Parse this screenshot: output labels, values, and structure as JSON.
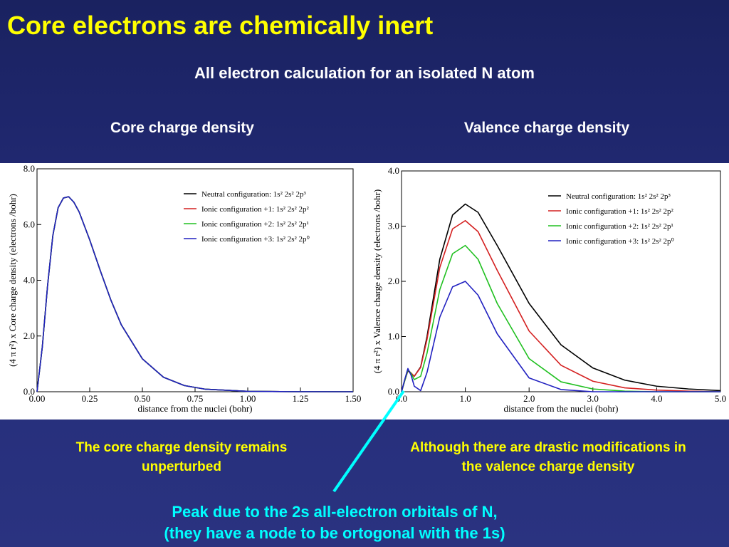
{
  "slide": {
    "title": "Core electrons are chemically inert",
    "subtitle": "All electron calculation for an isolated N atom",
    "left_label": "Core charge density",
    "right_label": "Valence charge density",
    "note_left_line1": "The core charge density remains",
    "note_left_line2": "unperturbed",
    "note_right_line1": "Although there are drastic modifications in",
    "note_right_line2": "the valence charge density",
    "peak_line1": "Peak due to the 2s all-electron orbitals of N,",
    "peak_line2": "(they have a node to be ortogonal with the 1s)",
    "colors": {
      "title": "#ffff00",
      "note": "#ffff00",
      "peak": "#00ffff",
      "arrow": "#00ffff"
    }
  },
  "chart_data": [
    {
      "type": "line",
      "xlabel": "distance from the nuclei (bohr)",
      "ylabel": "(4 π r²) x Core charge density (electrons /bohr)",
      "xlim": [
        0,
        1.5
      ],
      "ylim": [
        0,
        8
      ],
      "xticks": [
        "0.00",
        "0.25",
        "0.50",
        "0.75",
        "1.00",
        "1.25",
        "1.50"
      ],
      "yticks": [
        "0.0",
        "2.0",
        "4.0",
        "6.0",
        "8.0"
      ],
      "legend": "top-right",
      "series": [
        {
          "name": "Neutral configuration: 1s² 2s² 2p³",
          "color": "#000000",
          "x": [
            0,
            0.025,
            0.05,
            0.075,
            0.1,
            0.125,
            0.15,
            0.175,
            0.2,
            0.25,
            0.3,
            0.35,
            0.4,
            0.5,
            0.6,
            0.7,
            0.8,
            1.0,
            1.2,
            1.5
          ],
          "y": [
            0,
            1.6,
            3.8,
            5.6,
            6.6,
            6.95,
            7.0,
            6.8,
            6.45,
            5.45,
            4.35,
            3.3,
            2.4,
            1.18,
            0.52,
            0.22,
            0.09,
            0.015,
            0.003,
            0
          ]
        },
        {
          "name": "Ionic configuration +1: 1s² 2s² 2p²",
          "color": "#d42020",
          "x": [
            0,
            0.025,
            0.05,
            0.075,
            0.1,
            0.125,
            0.15,
            0.175,
            0.2,
            0.25,
            0.3,
            0.35,
            0.4,
            0.5,
            0.6,
            0.7,
            0.8,
            1.0,
            1.2,
            1.5
          ],
          "y": [
            0,
            1.6,
            3.8,
            5.6,
            6.6,
            6.95,
            7.0,
            6.8,
            6.45,
            5.45,
            4.35,
            3.3,
            2.4,
            1.18,
            0.52,
            0.22,
            0.09,
            0.015,
            0.003,
            0
          ]
        },
        {
          "name": "Ionic configuration +2: 1s² 2s² 2p¹",
          "color": "#20c020",
          "x": [
            0,
            0.025,
            0.05,
            0.075,
            0.1,
            0.125,
            0.15,
            0.175,
            0.2,
            0.25,
            0.3,
            0.35,
            0.4,
            0.5,
            0.6,
            0.7,
            0.8,
            1.0,
            1.2,
            1.5
          ],
          "y": [
            0,
            1.6,
            3.8,
            5.6,
            6.6,
            6.95,
            7.0,
            6.8,
            6.45,
            5.45,
            4.35,
            3.3,
            2.4,
            1.18,
            0.52,
            0.22,
            0.09,
            0.015,
            0.003,
            0
          ]
        },
        {
          "name": "Ionic configuration +3: 1s² 2s² 2p⁰",
          "color": "#2020c0",
          "x": [
            0,
            0.025,
            0.05,
            0.075,
            0.1,
            0.125,
            0.15,
            0.175,
            0.2,
            0.25,
            0.3,
            0.35,
            0.4,
            0.5,
            0.6,
            0.7,
            0.8,
            1.0,
            1.2,
            1.5
          ],
          "y": [
            0,
            1.6,
            3.8,
            5.6,
            6.6,
            6.95,
            7.0,
            6.8,
            6.45,
            5.45,
            4.35,
            3.3,
            2.4,
            1.18,
            0.52,
            0.22,
            0.09,
            0.015,
            0.003,
            0
          ]
        }
      ]
    },
    {
      "type": "line",
      "xlabel": "distance from the nuclei (bohr)",
      "ylabel": "(4 π r²) x Valence charge density (electrons /bohr)",
      "xlim": [
        0,
        5
      ],
      "ylim": [
        0,
        4
      ],
      "xticks": [
        "0.0",
        "1.0",
        "2.0",
        "3.0",
        "4.0",
        "5.0"
      ],
      "yticks": [
        "0.0",
        "1.0",
        "2.0",
        "3.0",
        "4.0"
      ],
      "legend": "top-right",
      "series": [
        {
          "name": "Neutral configuration: 1s² 2s² 2p³",
          "color": "#000000",
          "x": [
            0,
            0.05,
            0.1,
            0.15,
            0.2,
            0.3,
            0.4,
            0.6,
            0.8,
            1.0,
            1.2,
            1.5,
            2.0,
            2.5,
            3.0,
            3.5,
            4.0,
            4.5,
            5.0
          ],
          "y": [
            0,
            0.2,
            0.38,
            0.33,
            0.28,
            0.45,
            1.0,
            2.4,
            3.2,
            3.4,
            3.25,
            2.65,
            1.6,
            0.85,
            0.43,
            0.21,
            0.1,
            0.05,
            0.02
          ]
        },
        {
          "name": "Ionic configuration +1: 1s² 2s² 2p²",
          "color": "#d42020",
          "x": [
            0,
            0.05,
            0.1,
            0.15,
            0.2,
            0.3,
            0.4,
            0.6,
            0.8,
            1.0,
            1.2,
            1.5,
            2.0,
            2.5,
            3.0,
            3.5,
            4.0,
            4.5,
            5.0
          ],
          "y": [
            0,
            0.2,
            0.39,
            0.34,
            0.28,
            0.44,
            0.95,
            2.25,
            2.95,
            3.1,
            2.9,
            2.2,
            1.1,
            0.48,
            0.19,
            0.07,
            0.03,
            0.01,
            0
          ]
        },
        {
          "name": "Ionic configuration +2: 1s² 2s² 2p¹",
          "color": "#20c020",
          "x": [
            0,
            0.05,
            0.1,
            0.15,
            0.2,
            0.3,
            0.4,
            0.6,
            0.8,
            1.0,
            1.2,
            1.5,
            2.0,
            2.5,
            3.0,
            3.5,
            4.0,
            4.5,
            5.0
          ],
          "y": [
            0,
            0.2,
            0.4,
            0.33,
            0.22,
            0.28,
            0.7,
            1.85,
            2.5,
            2.65,
            2.4,
            1.6,
            0.6,
            0.18,
            0.05,
            0.01,
            0,
            0,
            0
          ]
        },
        {
          "name": "Ionic configuration +3: 1s² 2s² 2p⁰",
          "color": "#2020c0",
          "x": [
            0,
            0.05,
            0.1,
            0.15,
            0.2,
            0.3,
            0.4,
            0.6,
            0.8,
            1.0,
            1.2,
            1.5,
            2.0,
            2.5,
            3.0,
            3.5,
            4.0,
            4.5,
            5.0
          ],
          "y": [
            0,
            0.22,
            0.42,
            0.3,
            0.1,
            0.02,
            0.35,
            1.35,
            1.9,
            2.0,
            1.75,
            1.05,
            0.25,
            0.04,
            0,
            0,
            0,
            0,
            0
          ]
        }
      ]
    }
  ]
}
